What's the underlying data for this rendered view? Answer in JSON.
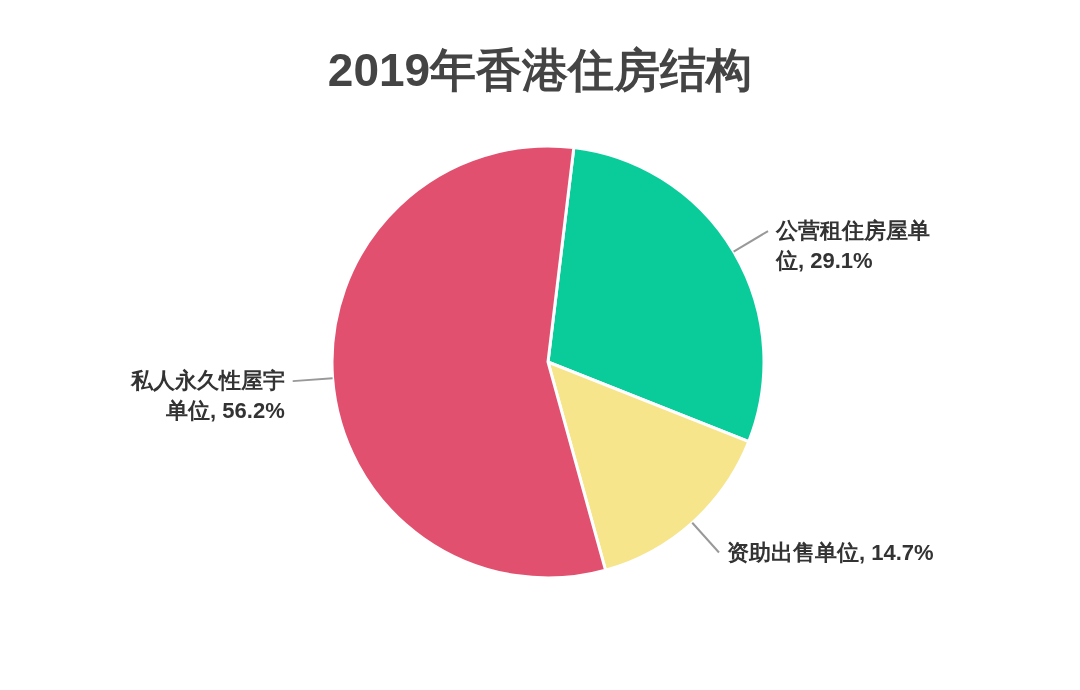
{
  "chart_data": {
    "type": "pie",
    "title": "2019年香港住房结构",
    "categories": [
      "公营租住房屋单位",
      "资助出售单位",
      "私人永久性屋宇单位"
    ],
    "values": [
      29.1,
      14.7,
      56.2
    ],
    "value_labels": [
      "29.1%",
      "14.7%",
      "56.2%"
    ],
    "colors": [
      "#0acc9b",
      "#f6e58b",
      "#e2506f"
    ]
  }
}
